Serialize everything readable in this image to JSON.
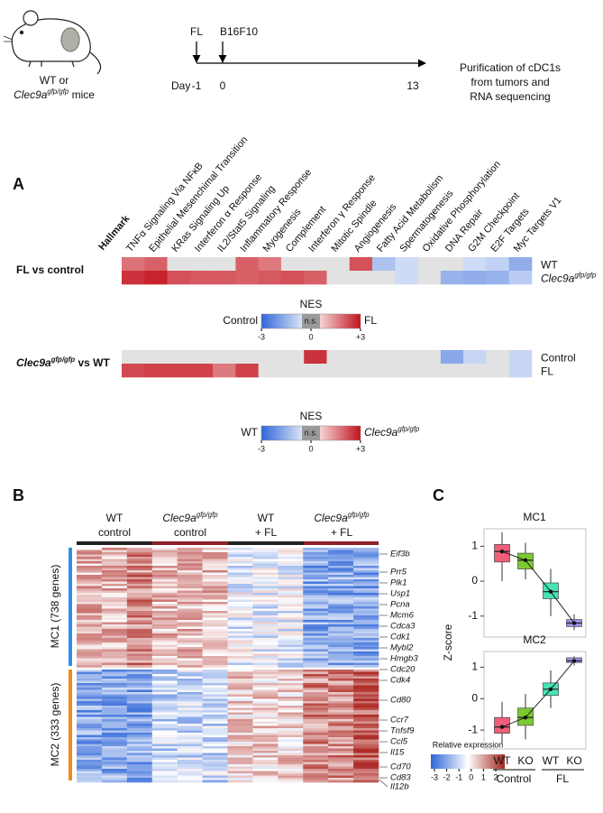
{
  "schematic": {
    "mouse_label": [
      "WT or",
      {
        "gene": "Clec9a",
        "sup": "gfp/gfp",
        "rest": " mice"
      }
    ],
    "day_label": "Day",
    "days": [
      -1,
      0,
      13
    ],
    "events": [
      "FL",
      "B16F10"
    ],
    "outcome": [
      "Purification of cDC1s",
      "from tumors and",
      "RNA sequencing"
    ]
  },
  "panel_a": {
    "label": "A",
    "header": "Hallmark",
    "hallmarks": [
      "TNFα Signaling Via NFκB",
      "Epithelial Mesenchimal Transition",
      "KRas Signaling Up",
      "Interferon α Response",
      "IL2/Stat5 Signaling",
      "Inflammatory Response",
      "Myogenesis",
      "Complement",
      "Interferon γ Response",
      "Mitotic Spindle",
      "Angiogenesis",
      "Fatty Acid Metabolism",
      "Spermatogenesis",
      "Oxidative Phosphorylation",
      "DNA Repair",
      "G2M Checkpoint",
      "E2F Targets",
      "Myc Targets V1"
    ],
    "comparisons": [
      {
        "title": "FL vs control",
        "rows": [
          {
            "label": "WT",
            "nes": [
              1.8,
              2.0,
              null,
              null,
              null,
              2.0,
              1.7,
              null,
              null,
              null,
              2.2,
              -1.2,
              -0.7,
              null,
              null,
              -0.7,
              -0.9,
              -1.6
            ]
          },
          {
            "label": {
              "gene": "Clec9a",
              "sup": "gfp/gfp"
            },
            "nes": [
              2.6,
              2.8,
              2.2,
              2.1,
              2.1,
              2.0,
              2.1,
              2.2,
              2.0,
              null,
              null,
              null,
              -0.7,
              null,
              -1.5,
              -1.6,
              -1.5,
              -1.0
            ]
          }
        ],
        "legend": {
          "title": "NES",
          "left": "Control",
          "middle": "n.s.",
          "right": "FL",
          "ticks": [
            -3,
            0,
            {
              "value": 3,
              "label": "+3"
            }
          ]
        }
      },
      {
        "title": {
          "gene": "Clec9a",
          "sup": "gfp/gfp",
          "rest": " vs WT"
        },
        "rows": [
          {
            "label": "Control",
            "nes": [
              null,
              null,
              null,
              null,
              null,
              null,
              null,
              null,
              2.6,
              null,
              null,
              null,
              null,
              null,
              -1.7,
              -0.8,
              null,
              -0.8
            ]
          },
          {
            "label": "FL",
            "nes": [
              2.3,
              2.4,
              2.4,
              2.4,
              1.7,
              2.4,
              null,
              null,
              null,
              null,
              null,
              null,
              null,
              null,
              null,
              null,
              null,
              -0.8
            ]
          }
        ],
        "legend": {
          "title": "NES",
          "left": "WT",
          "middle": "n.s.",
          "right": {
            "gene": "Clec9a",
            "sup": "gfp/gfp"
          },
          "ticks": [
            -3,
            0,
            {
              "value": 3,
              "label": "+3"
            }
          ]
        }
      }
    ]
  },
  "panel_b": {
    "label": "B",
    "groups": [
      {
        "line1": "WT",
        "line2": "control"
      },
      {
        "line1": {
          "gene": "Clec9a",
          "sup": "gfp/gfp"
        },
        "line2": "control"
      },
      {
        "line1": "WT",
        "line2": "+ FL"
      },
      {
        "line1": {
          "gene": "Clec9a",
          "sup": "gfp/gfp"
        },
        "line2": "+ FL"
      }
    ],
    "clusters": [
      "MC1 (738 genes)",
      "MC2 (333 genes)"
    ],
    "genes": [
      "Eif3b",
      "Prr5",
      "Plk1",
      "Usp1",
      "Pcna",
      "Mcm6",
      "Cdca3",
      "Cdk1",
      "Mybl2",
      "Hmgb3",
      "Cdc20",
      "Cdk4",
      "Cd80",
      "Ccr7",
      "Tnfsf9",
      "Ccl5",
      "Il15",
      "Cd70",
      "Cd83",
      "Il12b"
    ],
    "colorbar": {
      "title": "Relative expression",
      "ticks": [
        -3,
        -2,
        -1,
        0,
        1,
        2
      ]
    }
  },
  "panel_c": {
    "label": "C",
    "ylabel": "Z-score",
    "ylim": [
      -1.6,
      1.5
    ],
    "yticks": [
      -1,
      0,
      1
    ],
    "groups": [
      "WT",
      "KO",
      "WT",
      "KO"
    ],
    "conditions": [
      "Control",
      "FL"
    ],
    "colors": [
      "#ef5f7a",
      "#7cc932",
      "#47e3b4",
      "#a78ee6"
    ],
    "plots": [
      {
        "title": "MC1",
        "boxes": [
          {
            "low": 0.0,
            "q1": 0.55,
            "median": 0.85,
            "q3": 1.05,
            "high": 1.4
          },
          {
            "low": 0.05,
            "q1": 0.35,
            "median": 0.6,
            "q3": 0.8,
            "high": 1.1
          },
          {
            "low": -1.0,
            "q1": -0.5,
            "median": -0.3,
            "q3": -0.05,
            "high": 0.35
          },
          {
            "low": -1.4,
            "q1": -1.3,
            "median": -1.2,
            "q3": -1.1,
            "high": -0.95
          }
        ]
      },
      {
        "title": "MC2",
        "boxes": [
          {
            "low": -1.45,
            "q1": -1.1,
            "median": -0.9,
            "q3": -0.6,
            "high": -0.1
          },
          {
            "low": -1.3,
            "q1": -0.85,
            "median": -0.6,
            "q3": -0.3,
            "high": 0.15
          },
          {
            "low": -0.3,
            "q1": 0.1,
            "median": 0.3,
            "q3": 0.5,
            "high": 0.9
          },
          {
            "low": 1.05,
            "q1": 1.15,
            "median": 1.2,
            "q3": 1.3,
            "high": 1.35
          }
        ]
      }
    ]
  }
}
